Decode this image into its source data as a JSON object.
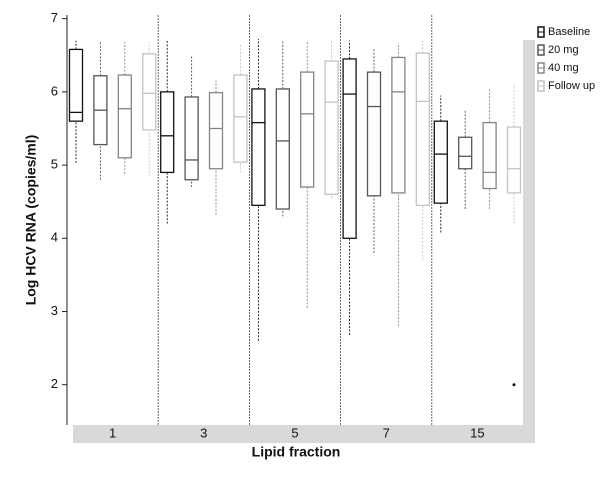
{
  "chart_data": {
    "type": "box",
    "x_label": "Lipid fraction",
    "y_label": "Log HCV RNA (copies/ml)",
    "categories": [
      "1",
      "3",
      "5",
      "7",
      "15"
    ],
    "ylim": [
      1.45,
      7.05
    ],
    "yticks": [
      2,
      3,
      4,
      5,
      6,
      7
    ],
    "series": [
      {
        "name": "Baseline",
        "color": "#111111",
        "min": [
          5.03,
          4.2,
          2.6,
          2.68,
          4.08
        ],
        "q1": [
          5.6,
          4.9,
          4.45,
          4.0,
          4.48
        ],
        "median": [
          5.72,
          5.4,
          5.58,
          5.97,
          5.15
        ],
        "q3": [
          6.58,
          6.0,
          6.04,
          6.45,
          5.6
        ],
        "max": [
          6.7,
          6.7,
          6.72,
          6.7,
          5.95
        ]
      },
      {
        "name": "20 mg",
        "color": "#555555",
        "min": [
          4.8,
          4.7,
          4.3,
          3.8,
          4.4
        ],
        "q1": [
          5.28,
          4.8,
          4.4,
          4.58,
          4.95
        ],
        "median": [
          5.75,
          5.07,
          5.33,
          5.8,
          5.12
        ],
        "q3": [
          6.22,
          5.93,
          6.04,
          6.27,
          5.38
        ],
        "max": [
          6.7,
          6.5,
          6.7,
          6.6,
          5.75
        ]
      },
      {
        "name": "40 mg",
        "color": "#858585",
        "min": [
          4.88,
          4.32,
          3.05,
          2.8,
          4.4
        ],
        "q1": [
          5.1,
          4.95,
          4.7,
          4.62,
          4.68
        ],
        "median": [
          5.77,
          5.5,
          5.7,
          6.0,
          4.9
        ],
        "q3": [
          6.23,
          5.99,
          6.27,
          6.47,
          5.58
        ],
        "max": [
          6.68,
          6.18,
          6.7,
          6.67,
          6.05
        ]
      },
      {
        "name": "Follow up",
        "color": "#c4c4c4",
        "min": [
          4.85,
          4.9,
          4.55,
          3.7,
          4.2
        ],
        "q1": [
          5.48,
          5.04,
          4.6,
          4.45,
          4.62
        ],
        "median": [
          5.98,
          5.66,
          5.86,
          5.87,
          4.95
        ],
        "q3": [
          6.52,
          6.23,
          6.42,
          6.53,
          5.52
        ],
        "max": [
          6.68,
          6.65,
          6.7,
          6.7,
          6.1
        ],
        "outliers": [
          [],
          [],
          [],
          [],
          [
            2
          ]
        ]
      }
    ]
  }
}
